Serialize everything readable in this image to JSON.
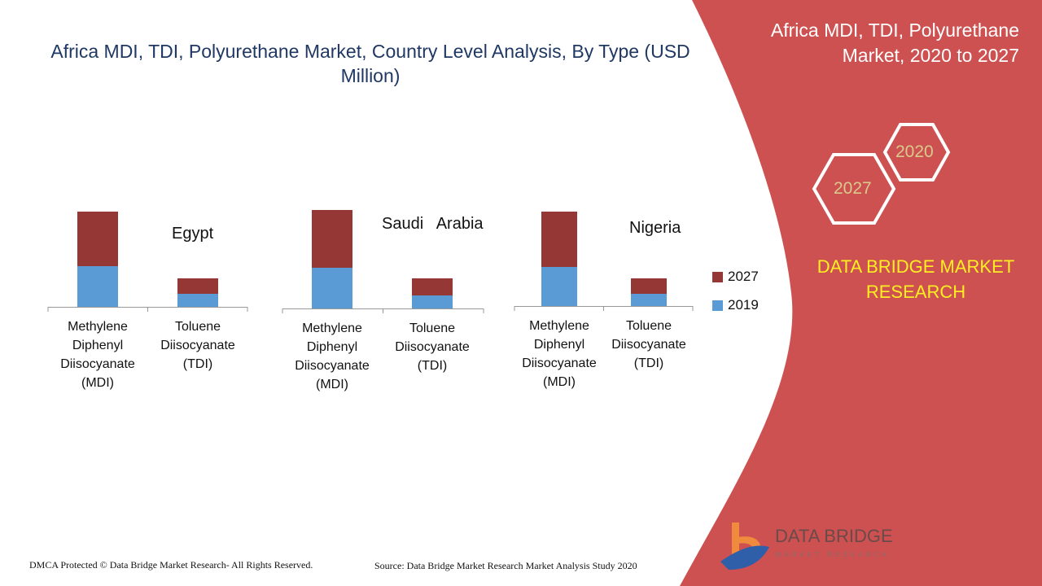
{
  "header": {
    "title": "Africa MDI, TDI, Polyurethane Market, Country Level Analysis, By Type (USD Million)"
  },
  "side": {
    "title": "Africa MDI, TDI, Polyurethane Market, 2020 to 2027",
    "year_a": "2027",
    "year_b": "2020",
    "brand": "DATA BRIDGE MARKET RESEARCH",
    "logo_text": "DATA BRIDGE",
    "logo_sub": "MARKET RESEARCH"
  },
  "footer": {
    "dmca": "DMCA Protected © Data Bridge Market Research- All Rights Reserved.",
    "source": "Source: Data Bridge Market Research Market Analysis Study 2020"
  },
  "colors": {
    "s2019": "#5b9bd5",
    "s2027": "#953735",
    "panel": "#cd5150"
  },
  "chart_data": {
    "type": "bar",
    "stacked": true,
    "title": "Africa MDI, TDI, Polyurethane Market, Country Level Analysis, By Type (USD Million)",
    "note": "No value axis shown; values are relative estimates",
    "legend": [
      "2027",
      "2019"
    ],
    "legend_position": "right",
    "categories": [
      "Methylene Diphenyl Diisocyanate (MDI)",
      "Toluene Diisocyanate (TDI)"
    ],
    "groups": [
      {
        "country": "Egypt",
        "series": [
          {
            "name": "2019",
            "values": [
              50,
              16
            ]
          },
          {
            "name": "2027",
            "values": [
              67,
              19
            ]
          }
        ]
      },
      {
        "country": "Saudi   Arabia",
        "series": [
          {
            "name": "2019",
            "values": [
              50,
              16
            ]
          },
          {
            "name": "2027",
            "values": [
              71,
              21
            ]
          }
        ]
      },
      {
        "country": "Nigeria",
        "series": [
          {
            "name": "2019",
            "values": [
              48,
              15
            ]
          },
          {
            "name": "2027",
            "values": [
              68,
              19
            ]
          }
        ]
      }
    ]
  }
}
